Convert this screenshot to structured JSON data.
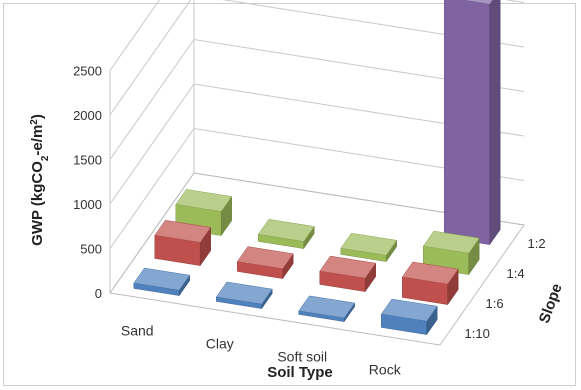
{
  "chart_data": {
    "type": "bar",
    "subtype": "3d-column",
    "title": "",
    "xlabel": "Soil Type",
    "ylabel": "GWP (kgCO2-e/m2)",
    "zlabel": "Slope",
    "categories": [
      "Sand",
      "Clay",
      "Soft soil",
      "Rock"
    ],
    "ylim": [
      0,
      2500
    ],
    "yticks": [
      "0",
      "500",
      "1000",
      "1500",
      "2000",
      "2500"
    ],
    "grid": true,
    "series": [
      {
        "name": "1:10",
        "color": "#4f81bd",
        "values": [
          60,
          50,
          40,
          150
        ]
      },
      {
        "name": "1:6",
        "color": "#c0504d",
        "values": [
          260,
          110,
          150,
          230
        ]
      },
      {
        "name": "1:4",
        "color": "#9bbb59",
        "values": [
          270,
          80,
          70,
          240
        ]
      },
      {
        "name": "1:2",
        "color": "#8064a2",
        "values": [
          0,
          0,
          0,
          2700
        ]
      }
    ]
  }
}
